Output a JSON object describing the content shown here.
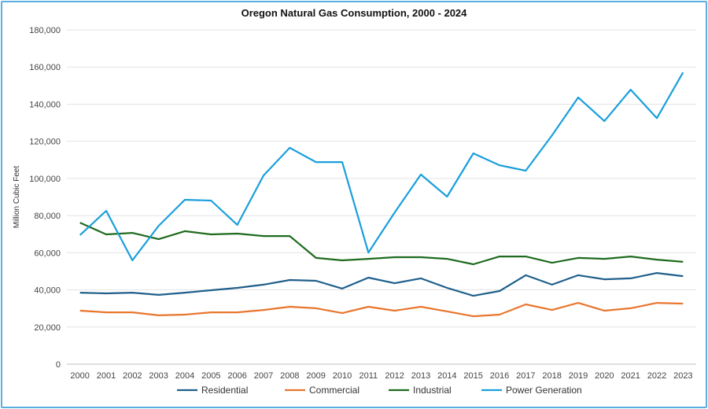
{
  "chart_data": {
    "type": "line",
    "title": "Oregon Natural Gas Consumption, 2000 - 2024",
    "xlabel": "",
    "ylabel": "Million Cubic Feet",
    "ylim": [
      0,
      180000
    ],
    "yticks": [
      "0",
      "20,000",
      "40,000",
      "60,000",
      "80,000",
      "100,000",
      "120,000",
      "140,000",
      "160,000",
      "180,000"
    ],
    "grid": "horizontal",
    "legend": "bottom",
    "categories": [
      "2000",
      "2001",
      "2002",
      "2003",
      "2004",
      "2005",
      "2006",
      "2007",
      "2008",
      "2009",
      "2010",
      "2011",
      "2012",
      "2013",
      "2014",
      "2015",
      "2016",
      "2017",
      "2018",
      "2019",
      "2020",
      "2021",
      "2022",
      "2023"
    ],
    "series": [
      {
        "name": "Residential",
        "color": "#1f5f8b",
        "values": [
          38500,
          38100,
          38500,
          37300,
          38500,
          39800,
          41100,
          42800,
          45300,
          44900,
          40700,
          46600,
          43600,
          46200,
          41100,
          36800,
          39400,
          47900,
          42800,
          47900,
          45700,
          46200,
          49100,
          47400
        ]
      },
      {
        "name": "Commercial",
        "color": "#e8762d",
        "values": [
          28800,
          27900,
          27900,
          26300,
          26700,
          27900,
          27900,
          29200,
          30900,
          30100,
          27500,
          30900,
          28800,
          30900,
          28400,
          25800,
          26700,
          32200,
          29200,
          33000,
          28800,
          30100,
          33000,
          32600
        ]
      },
      {
        "name": "Industrial",
        "color": "#1e6b1e",
        "values": [
          76200,
          69900,
          70700,
          67300,
          71600,
          69900,
          70300,
          69000,
          69000,
          57200,
          55900,
          56700,
          57600,
          57600,
          56700,
          53800,
          58000,
          58000,
          54600,
          57200,
          56700,
          58000,
          56300,
          55100
        ]
      },
      {
        "name": "Power Generation",
        "color": "#1a9fdb",
        "values": [
          69500,
          82600,
          55900,
          74500,
          88500,
          88100,
          75000,
          101600,
          116500,
          108800,
          108800,
          60100,
          81700,
          102100,
          90200,
          113500,
          107100,
          104200,
          123200,
          143600,
          130900,
          147800,
          132500,
          157100
        ]
      }
    ]
  }
}
